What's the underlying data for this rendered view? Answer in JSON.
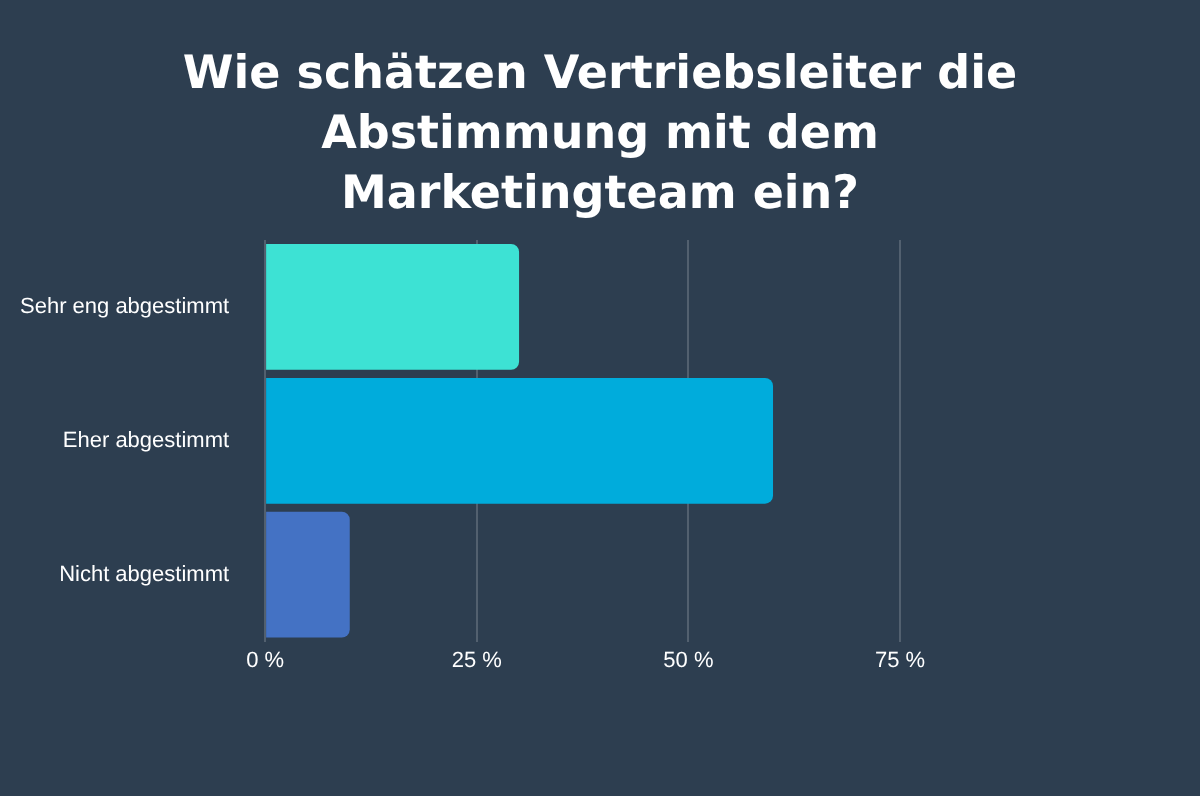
{
  "chart_data": {
    "type": "bar",
    "orientation": "horizontal",
    "title": "Wie schätzen Vertriebsleiter die Abstimmung mit dem Marketingteam ein?",
    "categories": [
      "Sehr eng abgestimmt",
      "Eher abgestimmt",
      "Nicht abgestimmt"
    ],
    "values": [
      30,
      60,
      10
    ],
    "colors": [
      "#3de2d4",
      "#00acdc",
      "#4472c4"
    ],
    "xlim": [
      0,
      75
    ],
    "xticks": [
      {
        "value": 0,
        "label": "0 %"
      },
      {
        "value": 25,
        "label": "25 %"
      },
      {
        "value": 50,
        "label": "50 %"
      },
      {
        "value": 75,
        "label": "75 %"
      }
    ],
    "grid": "x",
    "legend": false
  }
}
